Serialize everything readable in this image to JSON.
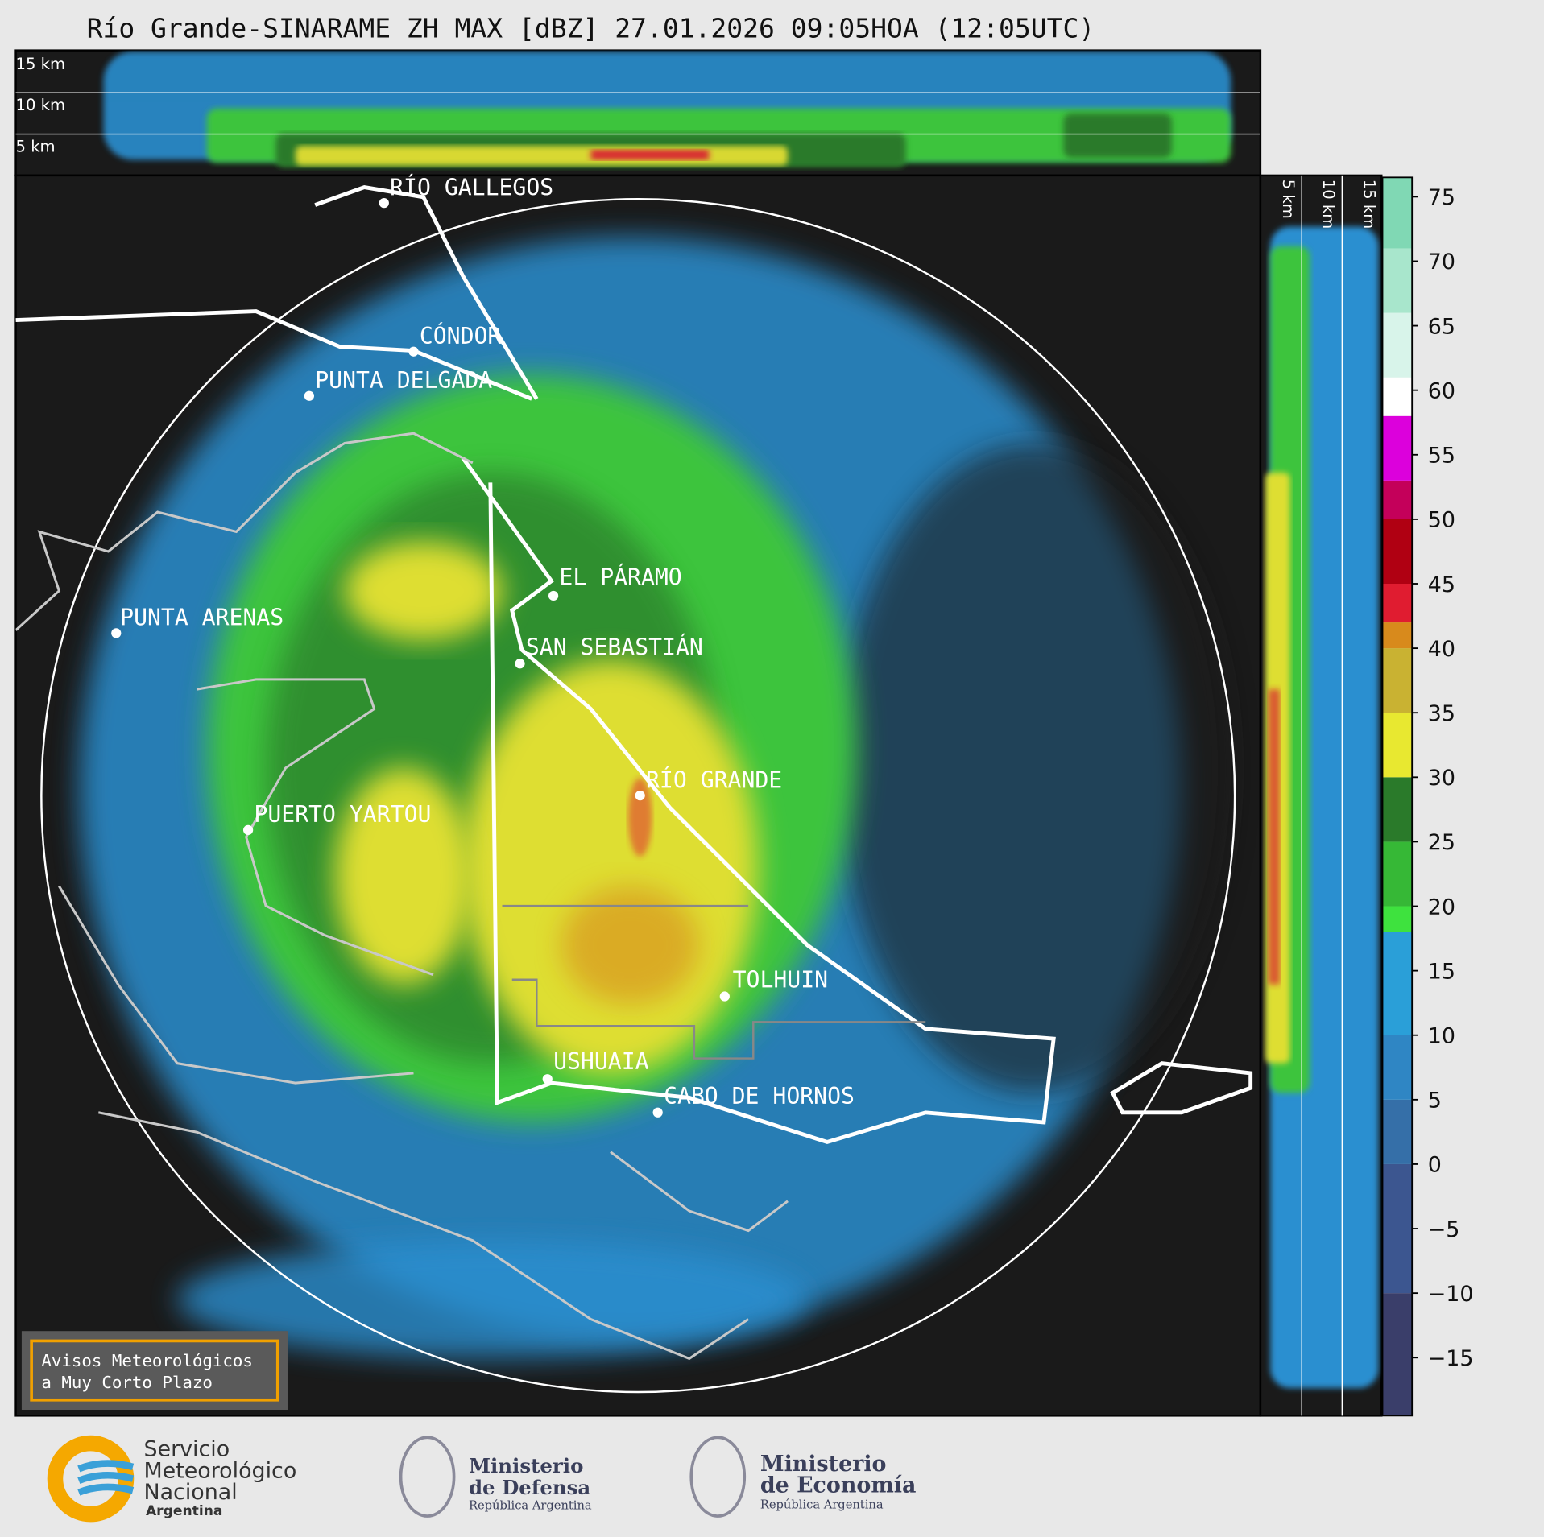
{
  "title": "Río Grande-SINARAME ZH MAX [dBZ] 27.01.2026 09:05HOA (12:05UTC)",
  "heights": [
    "15 km",
    "10 km",
    "5 km"
  ],
  "cities": [
    "RÍO GALLEGOS",
    "CÓNDOR",
    "PUNTA DELGADA",
    "EL PÁRAMO",
    "PUNTA ARENAS",
    "SAN SEBASTIÁN",
    "RÍO GRANDE",
    "PUERTO YARTOU",
    "TOLHUIN",
    "USHUAIA",
    "CABO DE HORNOS"
  ],
  "notice": [
    "Avisos Meteorológicos",
    "a Muy Corto Plazo"
  ],
  "logos": {
    "smn": [
      "Servicio",
      "Meteorológico",
      "Nacional",
      "Argentina"
    ],
    "defensa": [
      "Ministerio",
      "de Defensa",
      "República Argentina"
    ],
    "economia": [
      "Ministerio",
      "de Economía",
      "República Argentina"
    ]
  },
  "colorbar": {
    "clim": [
      -19.5,
      76.5
    ],
    "bounds": [
      -19.5,
      -10,
      0,
      5,
      10,
      18,
      20,
      25,
      30,
      35,
      40,
      42,
      45,
      50,
      53,
      58,
      61,
      66,
      71,
      76.5
    ],
    "colors": [
      "#3a3e6a",
      "#3c5690",
      "#356fa8",
      "#2f86c4",
      "#2a9fd8",
      "#3ee23e",
      "#36b836",
      "#2a7a2a",
      "#e8e830",
      "#c9b232",
      "#d88a1c",
      "#e01c30",
      "#b00012",
      "#c4005a",
      "#dc00dc",
      "#ffffff",
      "#d8f4ea",
      "#a8e6cc",
      "#80d8b4"
    ],
    "ticks": [
      75,
      70,
      65,
      60,
      55,
      50,
      45,
      40,
      35,
      30,
      25,
      20,
      15,
      10,
      5,
      0,
      {
        "value": -5,
        "label": "−5"
      },
      {
        "value": -10,
        "label": "−10"
      },
      {
        "value": -15,
        "label": "−15"
      }
    ]
  }
}
